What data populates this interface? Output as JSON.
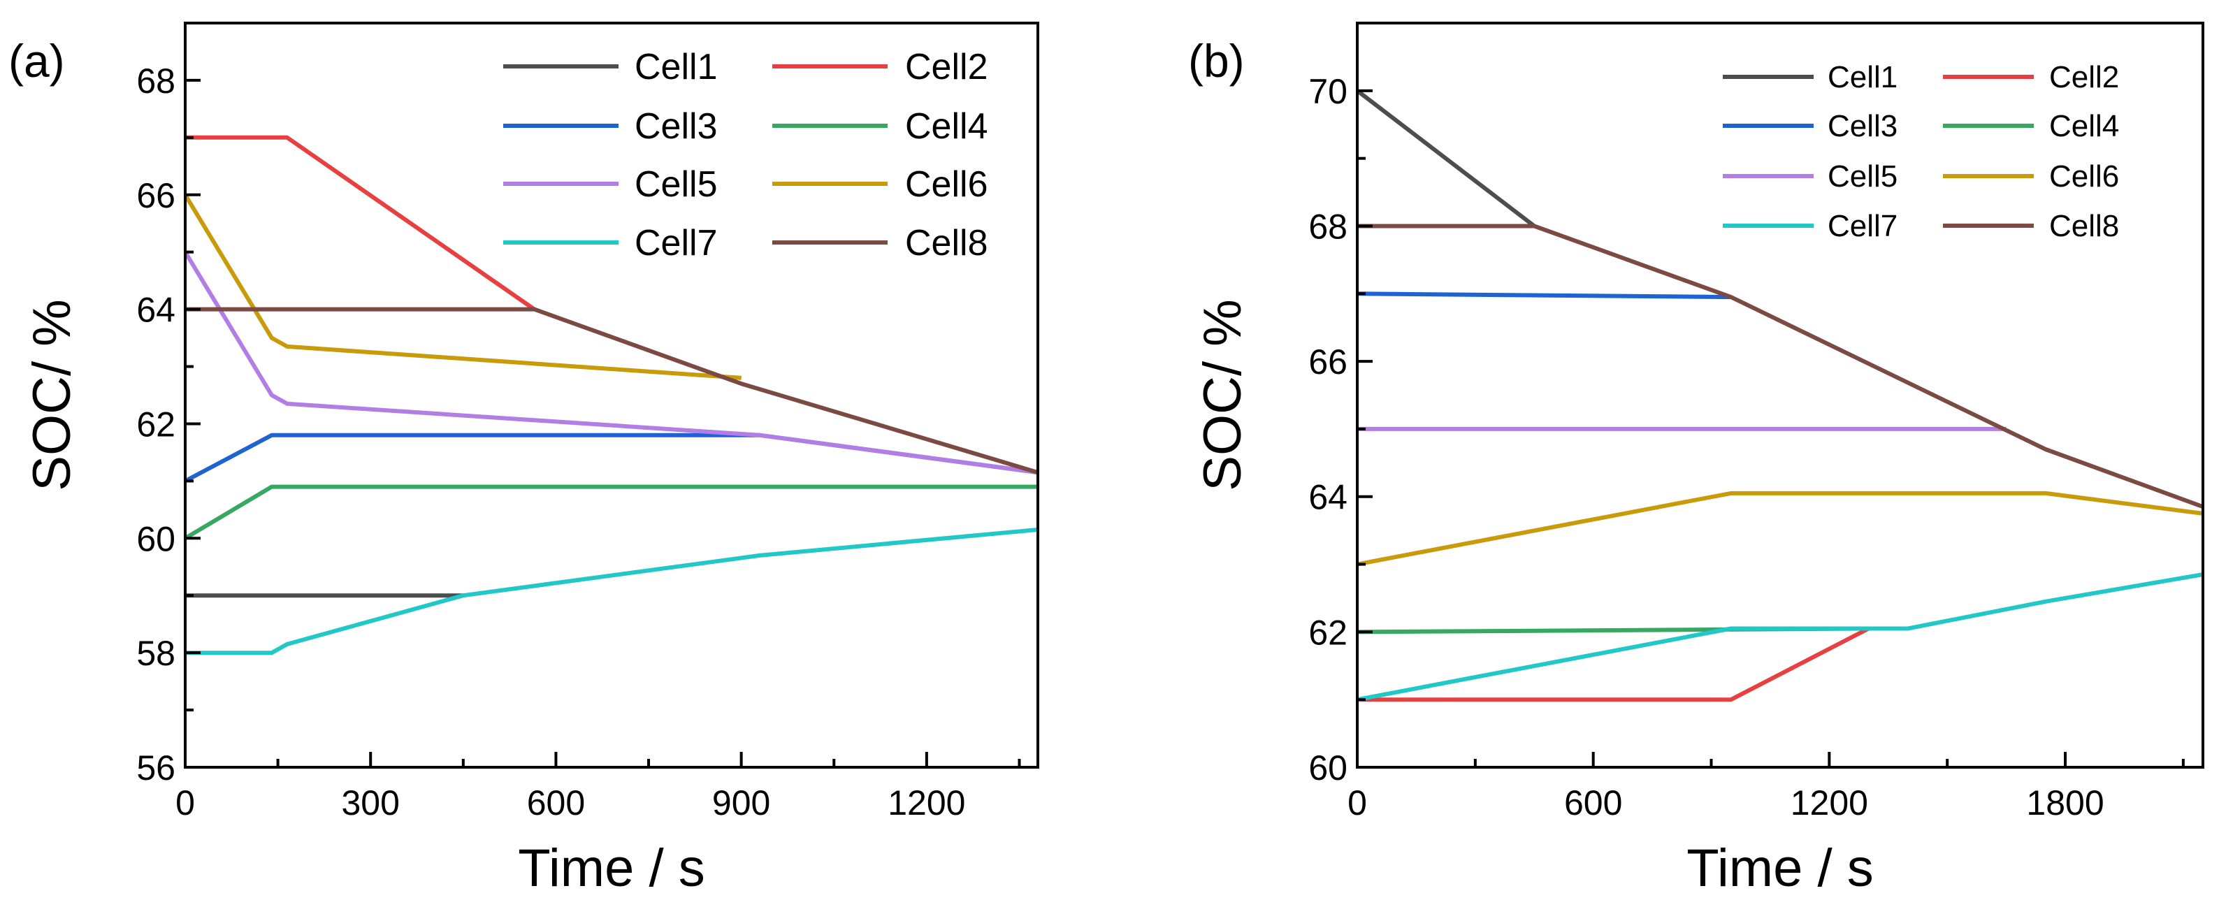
{
  "chart_data": [
    {
      "type": "line",
      "panel_label": "(a)",
      "xlabel": "Time / s",
      "ylabel": "SOC/ %",
      "xlim": [
        0,
        1380
      ],
      "ylim": [
        56,
        69
      ],
      "xticks": [
        0,
        300,
        600,
        900,
        1200
      ],
      "yticks": [
        56,
        58,
        60,
        62,
        64,
        66,
        68
      ],
      "xtick_labels": [
        "0",
        "300",
        "600",
        "900",
        "1200"
      ],
      "ytick_labels": [
        "56",
        "58",
        "60",
        "62",
        "64",
        "66",
        "68"
      ],
      "legend_position": "top-right",
      "series": [
        {
          "name": "Cell1",
          "color": "#4d4d4d",
          "x": [
            0,
            450
          ],
          "y": [
            59.0,
            59.0
          ]
        },
        {
          "name": "Cell2",
          "color": "#e84040",
          "x": [
            0,
            165,
            565
          ],
          "y": [
            67.0,
            67.0,
            64.0
          ]
        },
        {
          "name": "Cell3",
          "color": "#1f63d1",
          "x": [
            0,
            140,
            930,
            1380
          ],
          "y": [
            61.0,
            61.8,
            61.8,
            61.15
          ]
        },
        {
          "name": "Cell4",
          "color": "#36a862",
          "x": [
            0,
            140,
            1380
          ],
          "y": [
            60.0,
            60.9,
            60.9
          ]
        },
        {
          "name": "Cell5",
          "color": "#b27ee6",
          "x": [
            0,
            140,
            165,
            930,
            1380
          ],
          "y": [
            65.0,
            62.5,
            62.35,
            61.8,
            61.15
          ]
        },
        {
          "name": "Cell6",
          "color": "#c99a0a",
          "x": [
            0,
            140,
            165,
            900
          ],
          "y": [
            66.0,
            63.5,
            63.35,
            62.8
          ]
        },
        {
          "name": "Cell7",
          "color": "#22c8c8",
          "x": [
            0,
            140,
            165,
            450,
            930,
            1380
          ],
          "y": [
            58.0,
            58.0,
            58.15,
            59.0,
            59.7,
            60.15
          ]
        },
        {
          "name": "Cell8",
          "color": "#7b4a42",
          "x": [
            0,
            565,
            900,
            1380
          ],
          "y": [
            64.0,
            64.0,
            62.7,
            61.15
          ]
        }
      ]
    },
    {
      "type": "line",
      "panel_label": "(b)",
      "xlabel": "Time / s",
      "ylabel": "SOC/ %",
      "xlim": [
        0,
        2150
      ],
      "ylim": [
        60,
        71
      ],
      "xticks": [
        0,
        600,
        1200,
        1800
      ],
      "yticks": [
        60,
        62,
        64,
        66,
        68,
        70
      ],
      "xtick_labels": [
        "0",
        "600",
        "1200",
        "1800"
      ],
      "ytick_labels": [
        "60",
        "62",
        "64",
        "66",
        "68",
        "70"
      ],
      "legend_position": "top-right",
      "series": [
        {
          "name": "Cell1",
          "color": "#4d4d4d",
          "x": [
            0,
            450
          ],
          "y": [
            70.0,
            68.0
          ]
        },
        {
          "name": "Cell2",
          "color": "#e84040",
          "x": [
            0,
            950,
            1300
          ],
          "y": [
            61.0,
            61.0,
            62.05
          ]
        },
        {
          "name": "Cell3",
          "color": "#1f63d1",
          "x": [
            0,
            950
          ],
          "y": [
            67.0,
            66.95
          ]
        },
        {
          "name": "Cell4",
          "color": "#36a862",
          "x": [
            0,
            1300
          ],
          "y": [
            62.0,
            62.05
          ]
        },
        {
          "name": "Cell5",
          "color": "#b27ee6",
          "x": [
            0,
            1650
          ],
          "y": [
            65.0,
            65.0
          ]
        },
        {
          "name": "Cell6",
          "color": "#c99a0a",
          "x": [
            0,
            950,
            1750,
            2150
          ],
          "y": [
            63.0,
            64.05,
            64.05,
            63.75
          ]
        },
        {
          "name": "Cell7",
          "color": "#22c8c8",
          "x": [
            0,
            950,
            1400,
            1750,
            2150
          ],
          "y": [
            61.0,
            62.05,
            62.05,
            62.45,
            62.85
          ]
        },
        {
          "name": "Cell8",
          "color": "#7b4a42",
          "x": [
            0,
            450,
            950,
            1750,
            2150
          ],
          "y": [
            68.0,
            68.0,
            66.95,
            64.7,
            63.85
          ]
        }
      ]
    }
  ]
}
